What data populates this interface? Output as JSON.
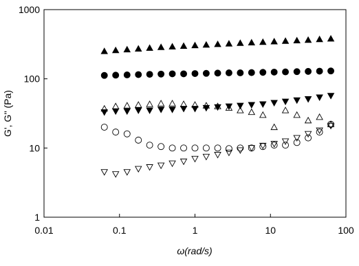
{
  "chart_data": {
    "type": "scatter",
    "xlabel": "ω(rad/s)",
    "ylabel": "G', G'' (Pa)",
    "xscale": "log",
    "yscale": "log",
    "xlim": [
      0.01,
      100
    ],
    "ylim": [
      1,
      1000
    ],
    "xticks": [
      0.01,
      0.1,
      1,
      10,
      100
    ],
    "yticks": [
      1,
      10,
      100,
      1000
    ],
    "x": [
      0.063,
      0.089,
      0.126,
      0.178,
      0.251,
      0.355,
      0.501,
      0.708,
      1,
      1.41,
      2,
      2.82,
      3.98,
      5.62,
      7.94,
      11.2,
      15.8,
      22.4,
      31.6,
      44.7,
      63.1
    ],
    "series": [
      {
        "marker": "triangle-up",
        "filled": true,
        "color": "#000000",
        "values": [
          250,
          258,
          265,
          272,
          279,
          286,
          292,
          298,
          304,
          310,
          316,
          322,
          328,
          334,
          340,
          346,
          352,
          358,
          364,
          372,
          380
        ]
      },
      {
        "marker": "circle",
        "filled": true,
        "color": "#000000",
        "values": [
          112,
          113,
          114,
          115,
          116,
          117,
          118,
          118,
          119,
          120,
          121,
          122,
          122,
          123,
          124,
          125,
          126,
          127,
          128,
          129,
          130
        ]
      },
      {
        "marker": "triangle-down",
        "filled": true,
        "color": "#000000",
        "values": [
          33,
          34,
          34,
          35,
          35,
          36,
          36,
          37,
          37,
          38,
          39,
          40,
          41,
          42,
          43,
          45,
          47,
          49,
          51,
          54,
          57
        ]
      },
      {
        "marker": "triangle-up",
        "filled": false,
        "color": "#000000",
        "values": [
          37,
          40,
          41,
          42,
          43,
          44,
          44,
          43,
          42,
          41,
          40,
          38,
          35,
          33,
          30,
          20,
          35,
          30,
          25,
          28,
          22
        ]
      },
      {
        "marker": "circle",
        "filled": false,
        "color": "#000000",
        "values": [
          20,
          17,
          16,
          13,
          11,
          10.5,
          10,
          10,
          10,
          10,
          10,
          9.8,
          10,
          10,
          10.5,
          11,
          11,
          12,
          14,
          17,
          22
        ]
      },
      {
        "marker": "triangle-down",
        "filled": false,
        "color": "#000000",
        "values": [
          4.5,
          4.2,
          4.5,
          5,
          5.3,
          5.6,
          6,
          6.4,
          7,
          7.5,
          8,
          8.6,
          9.3,
          10,
          10.8,
          11.5,
          12.5,
          14,
          16,
          18,
          21
        ]
      }
    ]
  }
}
